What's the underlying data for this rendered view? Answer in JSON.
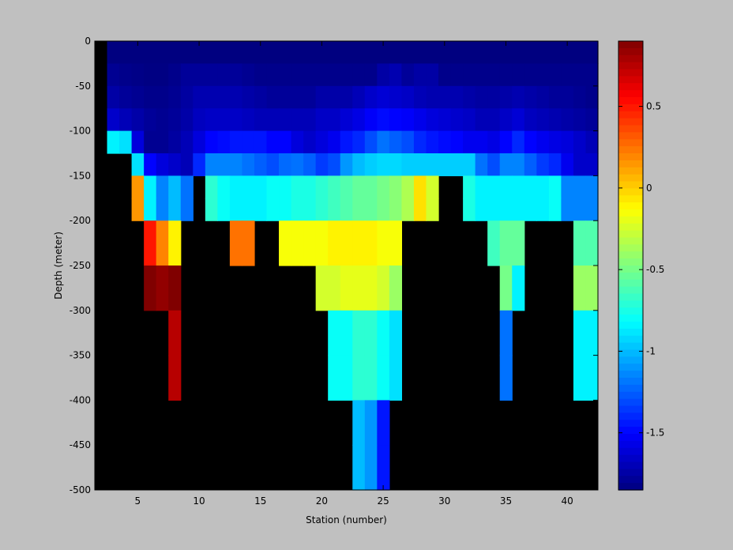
{
  "chart_data": {
    "type": "heatmap",
    "xlabel": "Station (number)",
    "ylabel": "Depth (meter)",
    "xlim": [
      1.5,
      42.5
    ],
    "ylim": [
      -500,
      0
    ],
    "x_ticks": [
      5,
      10,
      15,
      20,
      25,
      30,
      35,
      40
    ],
    "y_ticks": [
      0,
      -50,
      -100,
      -150,
      -200,
      -250,
      -300,
      -350,
      -400,
      -450,
      -500
    ],
    "colorbar": {
      "colormap": "jet",
      "range": [
        -1.85,
        0.9
      ],
      "ticks": [
        0.5,
        0,
        -0.5,
        -1,
        -1.5
      ]
    },
    "missing_color": "#000000",
    "x_edges": [
      1.5,
      2.5,
      3.5,
      4.5,
      5.5,
      6.5,
      7.5,
      8.5,
      9.5,
      10.5,
      11.5,
      12.5,
      13.5,
      14.5,
      15.5,
      16.5,
      17.5,
      18.5,
      19.5,
      20.5,
      21.5,
      22.5,
      23.5,
      24.5,
      25.5,
      26.5,
      27.5,
      28.5,
      29.5,
      30.5,
      31.5,
      32.5,
      33.5,
      34.5,
      35.5,
      36.5,
      37.5,
      38.5,
      39.5,
      40.5,
      41.5,
      42.5
    ],
    "depth_edges": [
      0,
      -5,
      -25,
      -50,
      -75,
      -100,
      -125,
      -150,
      -175,
      -200,
      -250,
      -300,
      -350,
      -400,
      -450,
      -500
    ],
    "row_labels": [
      "0 to -5",
      "-5 to -25",
      "-25 to -50",
      "-50 to -75",
      "-75 to -100",
      "-100 to -125",
      "-125 to -150",
      "-150 to -175",
      "-175 to -200",
      "-200 to -250",
      "-250 to -300",
      "-300 to -350",
      "-350 to -400",
      "-400 to -450",
      "-450 to -500"
    ],
    "values": [
      [
        null,
        -1.85,
        -1.85,
        -1.85,
        -1.85,
        -1.85,
        -1.85,
        -1.85,
        -1.85,
        -1.85,
        -1.85,
        -1.85,
        -1.85,
        -1.85,
        -1.85,
        -1.85,
        -1.85,
        -1.85,
        -1.85,
        -1.85,
        -1.85,
        -1.85,
        -1.85,
        -1.85,
        -1.85,
        -1.85,
        -1.85,
        -1.85,
        -1.85,
        -1.85,
        -1.85,
        -1.85,
        -1.85,
        -1.85,
        -1.85,
        -1.85,
        -1.85,
        -1.85,
        -1.85,
        -1.85,
        -1.85
      ],
      [
        null,
        -1.85,
        -1.85,
        -1.85,
        -1.85,
        -1.85,
        -1.85,
        -1.85,
        -1.85,
        -1.85,
        -1.85,
        -1.85,
        -1.85,
        -1.85,
        -1.85,
        -1.85,
        -1.85,
        -1.85,
        -1.85,
        -1.85,
        -1.85,
        -1.85,
        -1.85,
        -1.85,
        -1.85,
        -1.85,
        -1.85,
        -1.85,
        -1.85,
        -1.85,
        -1.85,
        -1.85,
        -1.85,
        -1.85,
        -1.85,
        -1.85,
        -1.85,
        -1.85,
        -1.85,
        -1.85,
        -1.85
      ],
      [
        null,
        -1.8,
        -1.82,
        -1.83,
        -1.84,
        -1.84,
        -1.82,
        -1.78,
        -1.78,
        -1.78,
        -1.78,
        -1.78,
        -1.8,
        -1.82,
        -1.82,
        -1.82,
        -1.82,
        -1.82,
        -1.82,
        -1.82,
        -1.82,
        -1.82,
        -1.82,
        -1.75,
        -1.72,
        -1.78,
        -1.75,
        -1.75,
        -1.82,
        -1.82,
        -1.82,
        -1.82,
        -1.82,
        -1.82,
        -1.82,
        -1.82,
        -1.82,
        -1.82,
        -1.82,
        -1.82,
        -1.82
      ],
      [
        null,
        -1.75,
        -1.78,
        -1.8,
        -1.82,
        -1.82,
        -1.8,
        -1.76,
        -1.72,
        -1.72,
        -1.72,
        -1.72,
        -1.74,
        -1.76,
        -1.78,
        -1.78,
        -1.78,
        -1.78,
        -1.74,
        -1.74,
        -1.74,
        -1.7,
        -1.65,
        -1.62,
        -1.64,
        -1.66,
        -1.7,
        -1.72,
        -1.72,
        -1.72,
        -1.74,
        -1.76,
        -1.76,
        -1.74,
        -1.72,
        -1.74,
        -1.76,
        -1.78,
        -1.78,
        -1.8,
        -1.82
      ],
      [
        null,
        -1.65,
        -1.7,
        -1.74,
        -1.78,
        -1.8,
        -1.78,
        -1.74,
        -1.68,
        -1.66,
        -1.66,
        -1.66,
        -1.68,
        -1.7,
        -1.7,
        -1.7,
        -1.7,
        -1.7,
        -1.66,
        -1.66,
        -1.62,
        -1.58,
        -1.52,
        -1.48,
        -1.5,
        -1.52,
        -1.56,
        -1.6,
        -1.62,
        -1.64,
        -1.66,
        -1.7,
        -1.7,
        -1.66,
        -1.62,
        -1.68,
        -1.7,
        -1.72,
        -1.74,
        -1.76,
        -1.78
      ],
      [
        null,
        -0.85,
        -0.9,
        -1.6,
        -1.8,
        -1.8,
        -1.76,
        -1.7,
        -1.6,
        -1.5,
        -1.48,
        -1.45,
        -1.45,
        -1.45,
        -1.5,
        -1.5,
        -1.6,
        -1.65,
        -1.6,
        -1.55,
        -1.45,
        -1.4,
        -1.3,
        -1.2,
        -1.25,
        -1.3,
        -1.4,
        -1.45,
        -1.48,
        -1.5,
        -1.55,
        -1.55,
        -1.58,
        -1.5,
        -1.4,
        -1.5,
        -1.55,
        -1.58,
        -1.6,
        -1.65,
        -1.7
      ],
      [
        null,
        null,
        null,
        -0.9,
        -1.5,
        -1.6,
        -1.65,
        -1.7,
        -1.4,
        -1.15,
        -1.15,
        -1.15,
        -1.2,
        -1.25,
        -1.3,
        -1.22,
        -1.2,
        -1.25,
        -1.35,
        -1.3,
        -1.1,
        -1.0,
        -0.95,
        -0.92,
        -0.92,
        -0.95,
        -0.95,
        -0.95,
        -0.95,
        -0.95,
        -0.95,
        -1.2,
        -1.3,
        -1.15,
        -1.15,
        -1.25,
        -1.35,
        -1.4,
        -1.55,
        -1.65,
        -1.65
      ],
      [
        null,
        null,
        null,
        0.15,
        -0.85,
        -1.15,
        -1.0,
        -1.2,
        null,
        -0.7,
        -0.8,
        -0.85,
        -0.85,
        -0.85,
        -0.8,
        -0.8,
        -0.75,
        -0.75,
        -0.7,
        -0.65,
        -0.6,
        -0.55,
        -0.55,
        -0.5,
        -0.45,
        -0.35,
        -0.05,
        -0.25,
        null,
        null,
        -0.75,
        -0.85,
        -0.85,
        -0.85,
        -0.85,
        -0.85,
        -0.85,
        -0.8,
        -1.15,
        -1.15,
        -1.15
      ],
      [
        null,
        null,
        null,
        0.15,
        -0.85,
        -1.15,
        -1.0,
        -1.2,
        null,
        -0.7,
        -0.8,
        -0.85,
        -0.85,
        -0.85,
        -0.8,
        -0.8,
        -0.75,
        -0.75,
        -0.7,
        -0.65,
        -0.6,
        -0.55,
        -0.55,
        -0.5,
        -0.45,
        -0.35,
        -0.05,
        -0.25,
        null,
        null,
        -0.75,
        -0.85,
        -0.85,
        -0.85,
        -0.85,
        -0.85,
        -0.85,
        -0.8,
        -1.15,
        -1.15,
        -1.15
      ],
      [
        null,
        null,
        null,
        null,
        0.5,
        0.2,
        -0.1,
        null,
        null,
        null,
        null,
        0.25,
        0.25,
        null,
        null,
        -0.15,
        -0.15,
        -0.15,
        -0.15,
        -0.1,
        -0.1,
        -0.1,
        -0.1,
        -0.15,
        -0.15,
        null,
        null,
        null,
        null,
        null,
        null,
        null,
        -0.65,
        -0.55,
        -0.55,
        null,
        null,
        null,
        null,
        -0.6,
        -0.6
      ],
      [
        null,
        null,
        null,
        null,
        0.9,
        0.85,
        0.95,
        null,
        null,
        null,
        null,
        null,
        null,
        null,
        null,
        null,
        null,
        null,
        -0.25,
        -0.25,
        -0.2,
        -0.2,
        -0.2,
        -0.25,
        -0.4,
        null,
        null,
        null,
        null,
        null,
        null,
        null,
        null,
        -0.5,
        -0.85,
        null,
        null,
        null,
        null,
        -0.4,
        -0.4
      ],
      [
        null,
        null,
        null,
        null,
        null,
        null,
        0.75,
        null,
        null,
        null,
        null,
        null,
        null,
        null,
        null,
        null,
        null,
        null,
        null,
        -0.8,
        -0.8,
        -0.7,
        -0.7,
        -0.8,
        -0.9,
        null,
        null,
        null,
        null,
        null,
        null,
        null,
        null,
        -1.2,
        null,
        null,
        null,
        null,
        null,
        -0.85,
        -0.85
      ],
      [
        null,
        null,
        null,
        null,
        null,
        null,
        0.75,
        null,
        null,
        null,
        null,
        null,
        null,
        null,
        null,
        null,
        null,
        null,
        null,
        -0.8,
        -0.8,
        -0.7,
        -0.7,
        -0.8,
        -0.9,
        null,
        null,
        null,
        null,
        null,
        null,
        null,
        null,
        -1.2,
        null,
        null,
        null,
        null,
        null,
        -0.85,
        -0.85
      ],
      [
        null,
        null,
        null,
        null,
        null,
        null,
        null,
        null,
        null,
        null,
        null,
        null,
        null,
        null,
        null,
        null,
        null,
        null,
        null,
        null,
        null,
        -1.0,
        -1.1,
        -1.45,
        null,
        null,
        null,
        null,
        null,
        null,
        null,
        null,
        null,
        null,
        null,
        null,
        null,
        null,
        null,
        null,
        null
      ],
      [
        null,
        null,
        null,
        null,
        null,
        null,
        null,
        null,
        null,
        null,
        null,
        null,
        null,
        null,
        null,
        null,
        null,
        null,
        null,
        null,
        null,
        -1.0,
        -1.1,
        -1.45,
        null,
        null,
        null,
        null,
        null,
        null,
        null,
        null,
        null,
        null,
        null,
        null,
        null,
        null,
        null,
        null,
        null
      ]
    ]
  }
}
